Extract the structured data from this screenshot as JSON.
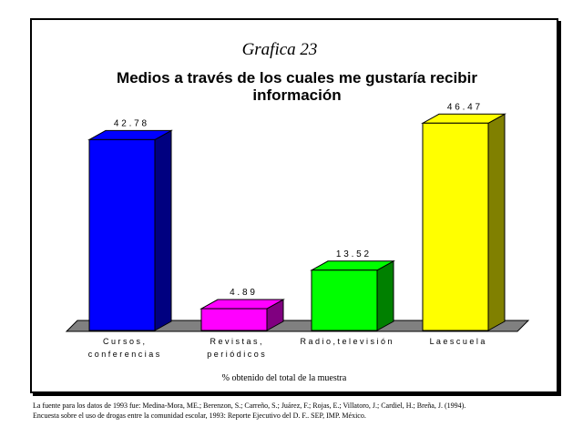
{
  "chart_data": {
    "type": "bar",
    "style": "3d",
    "supertitle": "Grafica 23",
    "title_lines": [
      "Medios a través de los cuales me gustaría recibir",
      "información"
    ],
    "categories": [
      [
        "C u r s o s ,",
        "c o n f e r e n c i a s"
      ],
      [
        "R e v i s t a s ,",
        "p e r i ó d i c o s"
      ],
      [
        "R a d i o ,  t e l e v i s i ó n"
      ],
      [
        "L a  e s c u e l a"
      ]
    ],
    "values": [
      42.78,
      4.89,
      13.52,
      46.47
    ],
    "value_labels": [
      "4 2 . 7 8",
      "4 . 8 9",
      "1 3 . 5 2",
      "4 6 . 4 7"
    ],
    "colors": [
      "#0000ff",
      "#ff00ff",
      "#00ff00",
      "#ffff00"
    ],
    "side_colors": [
      "#000080",
      "#800080",
      "#008000",
      "#808000"
    ],
    "xlabel": "% obtenido del total de la muestra",
    "ylim": [
      0,
      50
    ],
    "grid": false,
    "legend": "none"
  },
  "source": {
    "line1": "La fuente para los datos de 1993 fue: Medina-Mora, ME.; Berenzon, S.; Carreño, S.; Juárez, F.; Rojas, E.; Villatoro, J.; Cardiel, H.; Breña, J. (1994).",
    "line2": "Encuesta sobre el uso de drogas entre la comunidad escolar, 1993: Reporte Ejecutivo del D. F.. SEP, IMP. México."
  }
}
